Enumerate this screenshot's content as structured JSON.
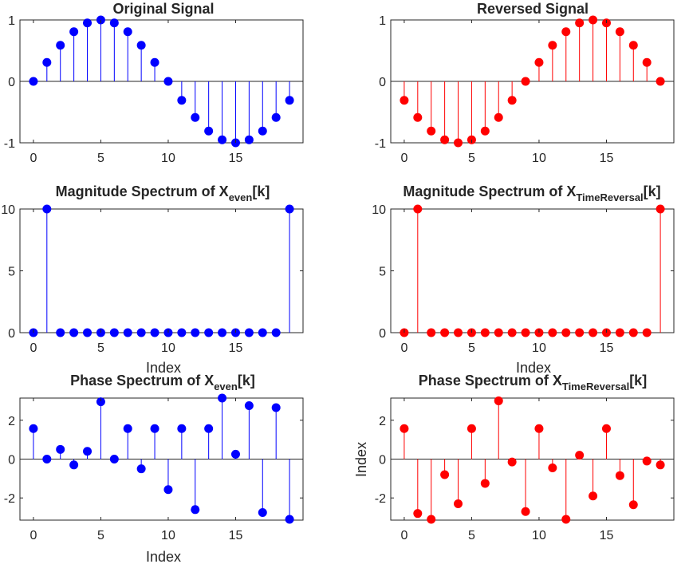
{
  "colors": {
    "blue": "#0000ff",
    "red": "#ff0000",
    "axis": "#262626"
  },
  "chart_data": [
    {
      "type": "stem",
      "id": "original",
      "title": "Original Signal",
      "title_main": "Original Signal",
      "title_sub": "",
      "title_tail": "",
      "xlabel": "",
      "ylabel": "",
      "color": "#0000ff",
      "xlim": [
        -1,
        20
      ],
      "ylim": [
        -1,
        1
      ],
      "xticks": [
        0,
        5,
        10,
        15
      ],
      "xtick_labels": [
        "0",
        "5",
        "10",
        "15"
      ],
      "yticks": [
        -1,
        0,
        1
      ],
      "ytick_labels": [
        "-1",
        "0",
        "1"
      ],
      "x": [
        0,
        1,
        2,
        3,
        4,
        5,
        6,
        7,
        8,
        9,
        10,
        11,
        12,
        13,
        14,
        15,
        16,
        17,
        18,
        19
      ],
      "y": [
        0,
        0.309,
        0.588,
        0.809,
        0.951,
        1.0,
        0.951,
        0.809,
        0.588,
        0.309,
        0,
        -0.309,
        -0.588,
        -0.809,
        -0.951,
        -1.0,
        -0.951,
        -0.809,
        -0.588,
        -0.309
      ]
    },
    {
      "type": "stem",
      "id": "reversed",
      "title": "Reversed Signal",
      "title_main": "Reversed Signal",
      "title_sub": "",
      "title_tail": "",
      "xlabel": "",
      "ylabel": "",
      "color": "#ff0000",
      "xlim": [
        -1,
        20
      ],
      "ylim": [
        -1,
        1
      ],
      "xticks": [
        0,
        5,
        10,
        15
      ],
      "xtick_labels": [
        "0",
        "5",
        "10",
        "15"
      ],
      "yticks": [
        -1,
        0,
        1
      ],
      "ytick_labels": [
        "-1",
        "0",
        "1"
      ],
      "x": [
        0,
        1,
        2,
        3,
        4,
        5,
        6,
        7,
        8,
        9,
        10,
        11,
        12,
        13,
        14,
        15,
        16,
        17,
        18,
        19
      ],
      "y": [
        -0.309,
        -0.588,
        -0.809,
        -0.951,
        -1.0,
        -0.951,
        -0.809,
        -0.588,
        -0.309,
        0,
        0.309,
        0.588,
        0.809,
        0.951,
        1.0,
        0.951,
        0.809,
        0.588,
        0.309,
        0
      ]
    },
    {
      "type": "stem",
      "id": "mag-even",
      "title": "Magnitude Spectrum of Xeven[k]",
      "title_main": "Magnitude Spectrum of X",
      "title_sub": "even",
      "title_tail": "[k]",
      "xlabel": "Index",
      "ylabel": "",
      "color": "#0000ff",
      "xlim": [
        -1,
        20
      ],
      "ylim": [
        0,
        10
      ],
      "xticks": [
        0,
        5,
        10,
        15
      ],
      "xtick_labels": [
        "0",
        "5",
        "10",
        "15"
      ],
      "yticks": [
        0,
        5,
        10
      ],
      "ytick_labels": [
        "0",
        "5",
        "10"
      ],
      "x": [
        0,
        1,
        2,
        3,
        4,
        5,
        6,
        7,
        8,
        9,
        10,
        11,
        12,
        13,
        14,
        15,
        16,
        17,
        18,
        19
      ],
      "y": [
        0,
        10,
        0,
        0,
        0,
        0,
        0,
        0,
        0,
        0,
        0,
        0,
        0,
        0,
        0,
        0,
        0,
        0,
        0,
        10
      ]
    },
    {
      "type": "stem",
      "id": "mag-reversal",
      "title": "Magnitude Spectrum of XTimeReversal[k]",
      "title_main": "Magnitude Spectrum of X",
      "title_sub": "TimeReversal",
      "title_tail": "[k]",
      "xlabel": "Index",
      "ylabel": "",
      "color": "#ff0000",
      "xlim": [
        -1,
        20
      ],
      "ylim": [
        0,
        10
      ],
      "xticks": [
        0,
        5,
        10,
        15
      ],
      "xtick_labels": [
        "0",
        "5",
        "10",
        "15"
      ],
      "yticks": [
        0,
        5,
        10
      ],
      "ytick_labels": [
        "0",
        "5",
        "10"
      ],
      "x": [
        0,
        1,
        2,
        3,
        4,
        5,
        6,
        7,
        8,
        9,
        10,
        11,
        12,
        13,
        14,
        15,
        16,
        17,
        18,
        19
      ],
      "y": [
        0,
        10,
        0,
        0,
        0,
        0,
        0,
        0,
        0,
        0,
        0,
        0,
        0,
        0,
        0,
        0,
        0,
        0,
        0,
        10
      ]
    },
    {
      "type": "stem",
      "id": "phase-even",
      "title": "Phase Spectrum of Xeven[k]",
      "title_main": "Phase Spectrum of X",
      "title_sub": "even",
      "title_tail": "[k]",
      "xlabel": "Index",
      "ylabel": "",
      "color": "#0000ff",
      "xlim": [
        -1,
        20
      ],
      "ylim": [
        -3.1416,
        3.1416
      ],
      "xticks": [
        0,
        5,
        10,
        15
      ],
      "xtick_labels": [
        "0",
        "5",
        "10",
        "15"
      ],
      "yticks": [
        -2,
        0,
        2
      ],
      "ytick_labels": [
        "-2",
        "0",
        "2"
      ],
      "x": [
        0,
        1,
        2,
        3,
        4,
        5,
        6,
        7,
        8,
        9,
        10,
        11,
        12,
        13,
        14,
        15,
        16,
        17,
        18,
        19
      ],
      "y": [
        1.571,
        0,
        0.5,
        -0.3,
        0.4,
        2.95,
        0,
        1.571,
        -0.5,
        1.571,
        -1.571,
        1.571,
        -2.6,
        1.571,
        3.14,
        0.25,
        2.75,
        -2.75,
        2.65,
        -3.1
      ]
    },
    {
      "type": "stem",
      "id": "phase-reversal",
      "title": "Phase Spectrum of XTimeReversal[k]",
      "title_main": "Phase Spectrum of X",
      "title_sub": "TimeReversal",
      "title_tail": "[k]",
      "xlabel": "",
      "ylabel": "Index",
      "color": "#ff0000",
      "xlim": [
        -1,
        20
      ],
      "ylim": [
        -3.1416,
        3.1416
      ],
      "xticks": [
        0,
        5,
        10,
        15
      ],
      "xtick_labels": [
        "0",
        "5",
        "10",
        "15"
      ],
      "yticks": [
        -2,
        0,
        2
      ],
      "ytick_labels": [
        "-2",
        "0",
        "2"
      ],
      "x": [
        0,
        1,
        2,
        3,
        4,
        5,
        6,
        7,
        8,
        9,
        10,
        11,
        12,
        13,
        14,
        15,
        16,
        17,
        18,
        19
      ],
      "y": [
        1.571,
        -2.8,
        -3.1,
        -0.8,
        -2.3,
        1.571,
        -1.25,
        3.0,
        -0.15,
        -2.7,
        1.571,
        -0.45,
        -3.1,
        0.2,
        -1.9,
        1.571,
        -0.85,
        -2.35,
        -0.1,
        -0.3
      ]
    }
  ]
}
